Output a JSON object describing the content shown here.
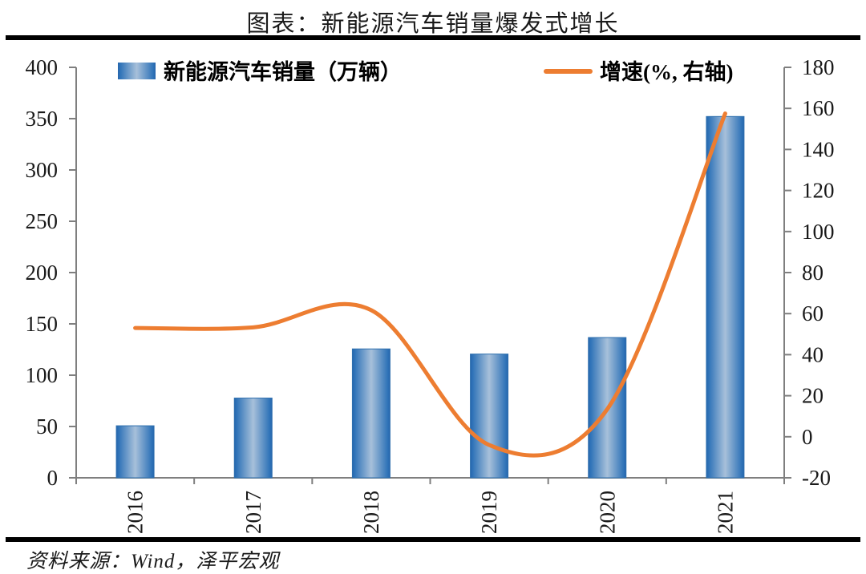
{
  "title": "图表：新能源汽车销量爆发式增长",
  "legend": {
    "bars_label": "新能源汽车销量（万辆）",
    "line_label": "增速(%, 右轴)"
  },
  "source": "资料来源：Wind，泽平宏观",
  "colors": {
    "bar_edge_dark": "#2665AC",
    "bar_edge": "#2F73B8",
    "bar_light": "#A7C0DA",
    "bar_stroke": "#2E6FAE",
    "line": "#ED7D31",
    "axis": "#7F7F7F",
    "text": "#1a1a1a",
    "rule": "#000000"
  },
  "chart_data": {
    "type": "bar+line combo",
    "title": "图表：新能源汽车销量爆发式增长",
    "categories": [
      "2016",
      "2017",
      "2018",
      "2019",
      "2020",
      "2021"
    ],
    "series": [
      {
        "name": "新能源汽车销量（万辆）",
        "type": "bar",
        "axis": "left",
        "values": [
          50.7,
          77.7,
          125.6,
          120.6,
          136.7,
          352.1
        ]
      },
      {
        "name": "增速(%, 右轴)",
        "type": "line",
        "axis": "right",
        "smooth": true,
        "values": [
          53,
          53.3,
          61.7,
          -4,
          13.4,
          157.5
        ]
      }
    ],
    "left_axis": {
      "min": 0,
      "max": 400,
      "step": 50,
      "tick_labels": [
        "400",
        "350",
        "300",
        "250",
        "200",
        "150",
        "100",
        "50",
        "0"
      ]
    },
    "right_axis": {
      "min": -20,
      "max": 180,
      "step": 20,
      "tick_labels": [
        "180",
        "160",
        "140",
        "120",
        "100",
        "80",
        "60",
        "40",
        "20",
        "0",
        "-20"
      ]
    },
    "x_labels_rotated_90deg": true,
    "grid": false,
    "legend_position": "top"
  }
}
